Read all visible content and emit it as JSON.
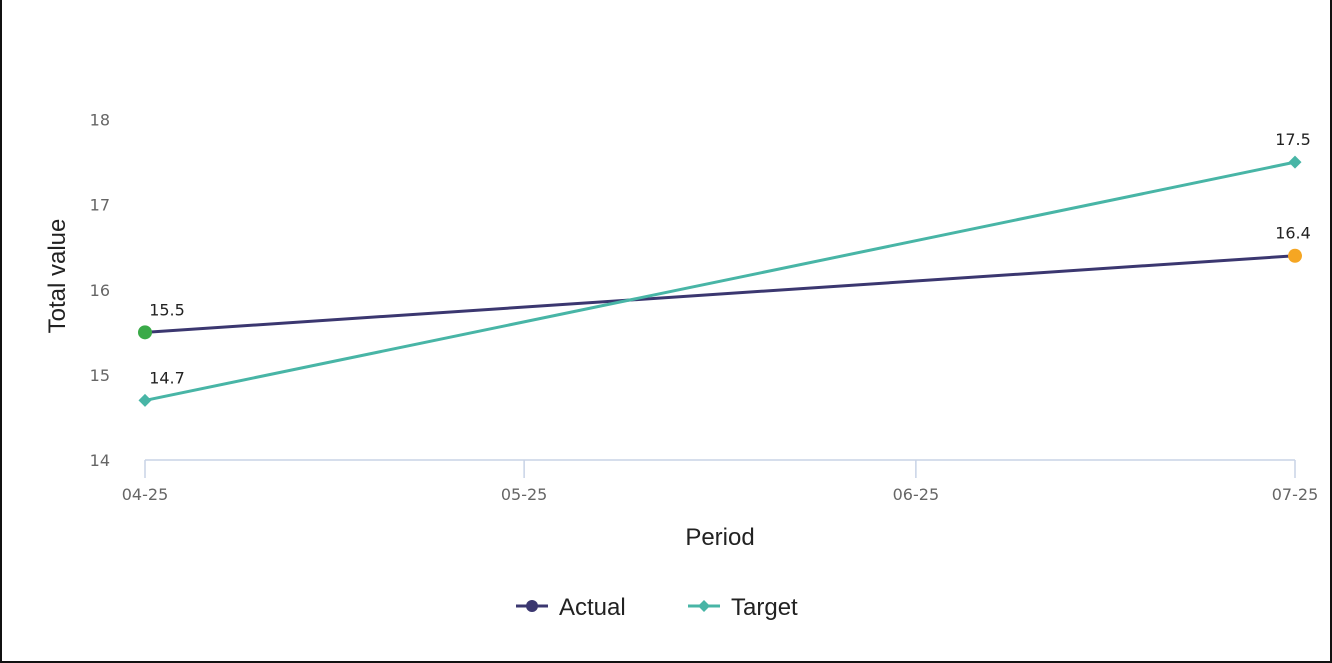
{
  "chart_data": {
    "type": "line",
    "title": "",
    "xlabel": "Period",
    "ylabel": "Total value",
    "categories": [
      "04-25",
      "05-25",
      "06-25",
      "07-25"
    ],
    "x_dates": [
      "2025-04-01",
      "2025-05-01",
      "2025-06-01",
      "2025-07-01"
    ],
    "ylim": [
      14,
      18.7
    ],
    "yticks": [
      14,
      15,
      16,
      17,
      18
    ],
    "grid": false,
    "legend": "bottom-center",
    "series": [
      {
        "name": "Actual",
        "color": "#3b3770",
        "marker": "circle",
        "points": [
          {
            "x": "2025-04-01",
            "y": 15.5,
            "label": "15.5",
            "marker_color": "#3aaa48"
          },
          {
            "x": "2025-07-01",
            "y": 16.4,
            "label": "16.4",
            "marker_color": "#f5a623"
          }
        ]
      },
      {
        "name": "Target",
        "color": "#48b5a6",
        "marker": "diamond",
        "points": [
          {
            "x": "2025-04-01",
            "y": 14.7,
            "label": "14.7",
            "marker_color": "#48b5a6"
          },
          {
            "x": "2025-07-01",
            "y": 17.5,
            "label": "17.5",
            "marker_color": "#48b5a6"
          }
        ]
      }
    ]
  }
}
